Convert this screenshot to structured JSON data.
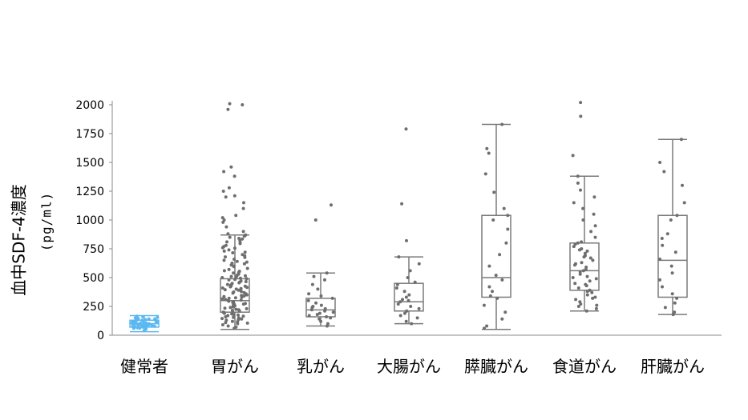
{
  "chart_data": {
    "type": "box-scatter",
    "title": "",
    "ylabel": "血中SDF-4濃度",
    "yunit": "(pg/ml)",
    "ylim": [
      0,
      2000
    ],
    "yticks": [
      0,
      250,
      500,
      750,
      1000,
      1250,
      1500,
      1750,
      2000
    ],
    "categories": [
      "健常者",
      "胃がん",
      "乳がん",
      "大腸がん",
      "膵臓がん",
      "食道がん",
      "肝臓がん"
    ],
    "colors": {
      "healthy": "#5bb8f0",
      "cancer": "#6e6e6e",
      "box": "#7a7a7a",
      "axis": "#888888"
    },
    "groups": [
      {
        "name": "健常者",
        "box": {
          "whisker_low": 30,
          "q1": 70,
          "median": 100,
          "q3": 130,
          "whisker_high": 170
        },
        "points": [
          40,
          55,
          60,
          65,
          70,
          72,
          75,
          78,
          80,
          82,
          85,
          88,
          90,
          92,
          95,
          98,
          100,
          102,
          105,
          108,
          110,
          112,
          115,
          118,
          120,
          122,
          125,
          128,
          130,
          135,
          140,
          145,
          150,
          155,
          160,
          165,
          50,
          62,
          74,
          86,
          97,
          104,
          116,
          124,
          132,
          142
        ]
      },
      {
        "name": "胃がん",
        "box": {
          "whisker_low": 50,
          "q1": 200,
          "median": 300,
          "q3": 490,
          "whisker_high": 870
        },
        "points": [
          60,
          80,
          100,
          120,
          140,
          150,
          160,
          170,
          180,
          190,
          200,
          205,
          210,
          220,
          230,
          240,
          250,
          255,
          260,
          270,
          280,
          290,
          295,
          300,
          305,
          310,
          320,
          330,
          340,
          350,
          360,
          370,
          380,
          390,
          400,
          410,
          420,
          430,
          440,
          450,
          460,
          470,
          480,
          490,
          500,
          510,
          520,
          540,
          560,
          580,
          600,
          620,
          640,
          660,
          680,
          700,
          720,
          740,
          760,
          780,
          800,
          820,
          840,
          860,
          880,
          900,
          940,
          980,
          1000,
          1020,
          1040,
          1100,
          1150,
          1200,
          1210,
          1250,
          1280,
          1380,
          1420,
          1460,
          1960,
          2010,
          2000,
          110,
          130,
          145,
          175,
          195,
          215,
          235,
          265,
          285,
          315,
          345,
          375,
          405,
          435,
          465,
          495,
          530,
          570,
          610,
          650,
          690,
          730,
          770,
          810,
          850,
          90,
          115,
          155,
          185,
          225,
          275,
          325,
          365,
          395,
          425,
          455,
          485,
          515,
          555,
          595,
          635,
          675,
          715,
          755,
          795,
          835,
          870,
          70,
          105,
          135,
          165,
          245,
          335,
          415,
          505,
          545,
          625
        ]
      },
      {
        "name": "乳がん",
        "box": {
          "whisker_low": 80,
          "q1": 160,
          "median": 220,
          "q3": 320,
          "whisker_high": 540
        },
        "points": [
          80,
          100,
          120,
          140,
          150,
          160,
          170,
          180,
          190,
          200,
          210,
          220,
          230,
          240,
          250,
          260,
          280,
          300,
          320,
          340,
          360,
          400,
          440,
          480,
          510,
          540,
          1000,
          1130
        ]
      },
      {
        "name": "大腸がん",
        "box": {
          "whisker_low": 100,
          "q1": 210,
          "median": 290,
          "q3": 450,
          "whisker_high": 680
        },
        "points": [
          100,
          120,
          150,
          170,
          190,
          210,
          230,
          250,
          270,
          290,
          300,
          310,
          330,
          350,
          380,
          410,
          440,
          460,
          500,
          560,
          620,
          680,
          820,
          1140,
          1790
        ]
      },
      {
        "name": "膵臓がん",
        "box": {
          "whisker_low": 50,
          "q1": 330,
          "median": 500,
          "q3": 1040,
          "whisker_high": 1830
        },
        "points": [
          60,
          80,
          140,
          200,
          260,
          320,
          340,
          380,
          420,
          480,
          520,
          600,
          700,
          800,
          920,
          1000,
          1040,
          1100,
          1240,
          1400,
          1580,
          1620,
          1830
        ]
      },
      {
        "name": "食道がん",
        "box": {
          "whisker_low": 210,
          "q1": 390,
          "median": 560,
          "q3": 800,
          "whisker_high": 1380
        },
        "points": [
          210,
          230,
          250,
          270,
          290,
          310,
          330,
          350,
          370,
          390,
          410,
          430,
          450,
          470,
          490,
          510,
          530,
          550,
          570,
          590,
          610,
          630,
          650,
          670,
          690,
          710,
          730,
          750,
          770,
          790,
          810,
          850,
          900,
          950,
          1000,
          1050,
          1100,
          1150,
          1200,
          1260,
          1320,
          1380,
          1560,
          1900,
          2020,
          260,
          320,
          380,
          440,
          500,
          560,
          620,
          680,
          740,
          800
        ]
      },
      {
        "name": "肝臓がん",
        "box": {
          "whisker_low": 180,
          "q1": 330,
          "median": 650,
          "q3": 1040,
          "whisker_high": 1700
        },
        "points": [
          180,
          200,
          240,
          280,
          320,
          360,
          420,
          480,
          540,
          600,
          660,
          720,
          780,
          840,
          880,
          1000,
          1040,
          1150,
          1300,
          1420,
          1500,
          1700
        ]
      }
    ]
  }
}
